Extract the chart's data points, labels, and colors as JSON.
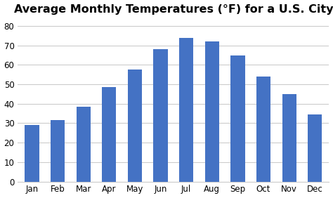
{
  "title": "Average Monthly Temperatures (°F) for a U.S. City",
  "months": [
    "Jan",
    "Feb",
    "Mar",
    "Apr",
    "May",
    "Jun",
    "Jul",
    "Aug",
    "Sep",
    "Oct",
    "Nov",
    "Dec"
  ],
  "values": [
    29,
    31.5,
    38.5,
    48.5,
    57.5,
    68,
    74,
    72,
    65,
    54,
    45,
    34.5
  ],
  "bar_color": "#4472C4",
  "ylim": [
    0,
    83
  ],
  "yticks": [
    0,
    10,
    20,
    30,
    40,
    50,
    60,
    70,
    80
  ],
  "background_color": "#ffffff",
  "grid_color": "#cccccc",
  "title_fontsize": 11.5,
  "tick_fontsize": 8.5,
  "bar_width": 0.55
}
